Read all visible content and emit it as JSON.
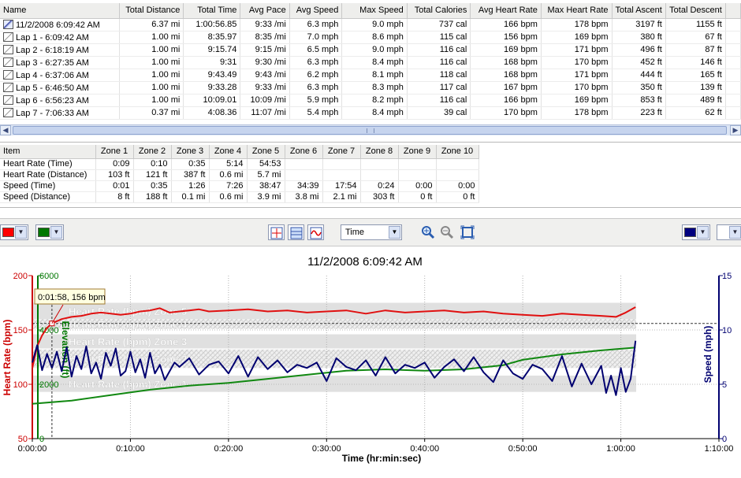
{
  "laps": {
    "columns": [
      {
        "label": "Name",
        "w": 153,
        "align": "l"
      },
      {
        "label": "Total Distance",
        "w": 82,
        "align": "r"
      },
      {
        "label": "Total Time",
        "w": 73,
        "align": "r"
      },
      {
        "label": "Avg Pace",
        "w": 63,
        "align": "r"
      },
      {
        "label": "Avg Speed",
        "w": 67,
        "align": "r"
      },
      {
        "label": "Max Speed",
        "w": 84,
        "align": "r"
      },
      {
        "label": "Total Calories",
        "w": 81,
        "align": "r"
      },
      {
        "label": "Avg Heart Rate",
        "w": 90,
        "align": "r"
      },
      {
        "label": "Max Heart Rate",
        "w": 90,
        "align": "r"
      },
      {
        "label": "Total Ascent",
        "w": 68,
        "align": "r"
      },
      {
        "label": "Total Descent",
        "w": 76,
        "align": "r"
      },
      {
        "label": "",
        "w": 20,
        "align": "l"
      }
    ],
    "rows": [
      {
        "name": "11/2/2008 6:09:42 AM",
        "icon": "activity-icon",
        "cells": [
          "6.37 mi",
          "1:00:56.85",
          "9:33 /mi",
          "6.3 mph",
          "9.0 mph",
          "737 cal",
          "166 bpm",
          "178 bpm",
          "3197 ft",
          "1155 ft"
        ]
      },
      {
        "name": "Lap 1 - 6:09:42 AM",
        "icon": "lap-icon",
        "cells": [
          "1.00 mi",
          "8:35.97",
          "8:35 /mi",
          "7.0 mph",
          "8.6 mph",
          "115 cal",
          "156 bpm",
          "169 bpm",
          "380 ft",
          "67 ft"
        ]
      },
      {
        "name": "Lap 2 - 6:18:19 AM",
        "icon": "lap-icon",
        "cells": [
          "1.00 mi",
          "9:15.74",
          "9:15 /mi",
          "6.5 mph",
          "9.0 mph",
          "116 cal",
          "169 bpm",
          "171 bpm",
          "496 ft",
          "87 ft"
        ]
      },
      {
        "name": "Lap 3 - 6:27:35 AM",
        "icon": "lap-icon",
        "cells": [
          "1.00 mi",
          "9:31",
          "9:30 /mi",
          "6.3 mph",
          "8.4 mph",
          "116 cal",
          "168 bpm",
          "170 bpm",
          "452 ft",
          "146 ft"
        ]
      },
      {
        "name": "Lap 4 - 6:37:06 AM",
        "icon": "lap-icon",
        "cells": [
          "1.00 mi",
          "9:43.49",
          "9:43 /mi",
          "6.2 mph",
          "8.1 mph",
          "118 cal",
          "168 bpm",
          "171 bpm",
          "444 ft",
          "165 ft"
        ]
      },
      {
        "name": "Lap 5 - 6:46:50 AM",
        "icon": "lap-icon",
        "cells": [
          "1.00 mi",
          "9:33.28",
          "9:33 /mi",
          "6.3 mph",
          "8.3 mph",
          "117 cal",
          "167 bpm",
          "170 bpm",
          "350 ft",
          "139 ft"
        ]
      },
      {
        "name": "Lap 6 - 6:56:23 AM",
        "icon": "lap-icon",
        "cells": [
          "1.00 mi",
          "10:09.01",
          "10:09 /mi",
          "5.9 mph",
          "8.2 mph",
          "116 cal",
          "166 bpm",
          "169 bpm",
          "853 ft",
          "489 ft"
        ]
      },
      {
        "name": "Lap 7 - 7:06:33 AM",
        "icon": "lap-icon",
        "cells": [
          "0.37 mi",
          "4:08.36",
          "11:07 /mi",
          "5.4 mph",
          "8.4 mph",
          "39 cal",
          "170 bpm",
          "178 bpm",
          "223 ft",
          "62 ft"
        ]
      }
    ]
  },
  "zones": {
    "columns": [
      "Item",
      "Zone 1",
      "Zone 2",
      "Zone 3",
      "Zone 4",
      "Zone 5",
      "Zone 6",
      "Zone 7",
      "Zone 8",
      "Zone 9",
      "Zone 10"
    ],
    "rows": [
      [
        "Heart Rate (Time)",
        "0:09",
        "0:10",
        "0:35",
        "5:14",
        "54:53",
        "",
        "",
        "",
        "",
        ""
      ],
      [
        "Heart Rate (Distance)",
        "103 ft",
        "121 ft",
        "387 ft",
        "0.6 mi",
        "5.7 mi",
        "",
        "",
        "",
        "",
        ""
      ],
      [
        "Speed (Time)",
        "0:01",
        "0:35",
        "1:26",
        "7:26",
        "38:47",
        "34:39",
        "17:54",
        "0:24",
        "0:00",
        "0:00"
      ],
      [
        "Speed (Distance)",
        "8 ft",
        "188 ft",
        "0.1 mi",
        "0.6 mi",
        "3.9 mi",
        "3.8 mi",
        "2.1 mi",
        "303 ft",
        "0 ft",
        "0 ft"
      ]
    ]
  },
  "toolbar": {
    "left_color_1": "#ff0000",
    "left_color_2": "#007700",
    "right_color": "#000080",
    "x_axis_mode": "Time",
    "dropdown_glyph": "▼"
  },
  "chart_data": {
    "type": "line",
    "title": "11/2/2008 6:09:42 AM",
    "xlabel": "Time (hr:min:sec)",
    "xlim": [
      0,
      70
    ],
    "x_tick_labels": [
      "0:00:00",
      "0:10:00",
      "0:20:00",
      "0:30:00",
      "0:40:00",
      "0:50:00",
      "1:00:00",
      "1:10:00"
    ],
    "axes": {
      "heart_rate": {
        "label": "Heart Rate (bpm)",
        "color": "#cc0000",
        "range": [
          50,
          200
        ],
        "ticks": [
          50,
          100,
          150,
          200
        ]
      },
      "elevation": {
        "label": "Elevation (ft)",
        "color": "#007700",
        "range": [
          0,
          6000
        ],
        "ticks": [
          "0",
          "2000",
          "4000",
          "6000"
        ]
      },
      "speed": {
        "label": "Speed (mph)",
        "color": "#000070",
        "range": [
          0,
          15
        ],
        "ticks": [
          0,
          5,
          10,
          15
        ]
      }
    },
    "zone_bands": [
      {
        "label": "Heart Rate (bpm) Zone 5",
        "range": [
          160,
          175
        ]
      },
      {
        "label": "Heart Rate (bpm) Zone 4",
        "range": [
          151,
          160
        ]
      },
      {
        "label": "Heart Rate (bpm) Zone 3",
        "range": [
          133,
          146
        ]
      },
      {
        "label": "Heart Rate (bpm) Zone 2",
        "range": [
          115,
          132
        ]
      },
      {
        "label": "Heart Rate (bpm) Zone 1",
        "range": [
          93,
          108
        ]
      }
    ],
    "marker": {
      "x": 2.0,
      "label": "0:01:58, 156 bpm",
      "hr": 156
    },
    "series": [
      {
        "name": "Heart Rate",
        "axis": "heart_rate",
        "color": "#e01010",
        "x": [
          0,
          0.5,
          1,
          1.5,
          2,
          3,
          4,
          5,
          6,
          7,
          8,
          9,
          10,
          11,
          12,
          13,
          14,
          15,
          16,
          17,
          18,
          20,
          22,
          24,
          26,
          28,
          30,
          32,
          34,
          36,
          38,
          40,
          42,
          44,
          46,
          48,
          50,
          52,
          54,
          56,
          58,
          59.5,
          60.5,
          61.5
        ],
        "values": [
          115,
          135,
          145,
          152,
          156,
          160,
          162,
          163,
          165,
          166,
          165,
          164,
          165,
          167,
          168,
          170,
          166,
          167,
          168,
          169,
          167,
          168,
          169,
          167,
          168,
          166,
          167,
          168,
          165,
          168,
          166,
          167,
          168,
          166,
          167,
          165,
          164,
          163,
          165,
          164,
          163,
          162,
          166,
          171
        ]
      },
      {
        "name": "Elevation",
        "axis": "elevation",
        "color": "#118811",
        "x": [
          0,
          4,
          8,
          12,
          16,
          20,
          24,
          28,
          32,
          36,
          40,
          44,
          48,
          50,
          54,
          58,
          61.5
        ],
        "values": [
          1280,
          1400,
          1600,
          1800,
          1950,
          2050,
          2200,
          2350,
          2500,
          2550,
          2500,
          2550,
          2700,
          2900,
          3100,
          3250,
          3350
        ]
      },
      {
        "name": "Speed",
        "axis": "speed",
        "color": "#000070",
        "x": [
          0,
          0.5,
          1,
          1.5,
          2,
          2.5,
          3,
          3.5,
          4,
          4.5,
          5,
          5.5,
          6,
          6.5,
          7,
          7.5,
          8,
          8.5,
          9,
          9.5,
          10,
          10.5,
          11,
          11.5,
          12,
          12.5,
          13,
          13.5,
          14,
          14.5,
          15,
          16,
          17,
          18,
          19,
          20,
          21,
          22,
          23,
          24,
          25,
          26,
          27,
          28,
          29,
          30,
          31,
          32,
          33,
          34,
          35,
          36,
          37,
          38,
          39,
          40,
          41,
          42,
          43,
          44,
          45,
          46,
          47,
          48,
          49,
          50,
          51,
          52,
          53,
          54,
          55,
          56,
          57,
          58,
          58.5,
          59,
          59.5,
          60,
          60.5,
          61,
          61.5
        ],
        "values": [
          7.0,
          8.6,
          6.3,
          7.8,
          6.5,
          8.0,
          6.2,
          8.4,
          5.7,
          7.6,
          6.4,
          8.5,
          6.0,
          7.0,
          5.5,
          7.9,
          6.7,
          8.3,
          5.8,
          6.2,
          8.0,
          6.1,
          7.3,
          5.6,
          7.9,
          6.0,
          6.8,
          5.4,
          6.2,
          7.0,
          6.6,
          7.4,
          5.9,
          6.8,
          7.1,
          6.0,
          7.6,
          5.7,
          7.5,
          6.4,
          7.2,
          6.1,
          6.8,
          6.5,
          7.0,
          5.3,
          7.4,
          6.6,
          6.3,
          7.2,
          5.8,
          7.5,
          6.0,
          6.8,
          6.5,
          7.0,
          5.6,
          6.6,
          7.3,
          6.2,
          7.5,
          6.1,
          5.2,
          7.2,
          6.0,
          5.5,
          6.8,
          6.4,
          5.3,
          7.6,
          4.8,
          6.9,
          5.0,
          6.7,
          4.2,
          5.8,
          4.0,
          6.5,
          4.3,
          5.5,
          9.0
        ]
      }
    ]
  }
}
